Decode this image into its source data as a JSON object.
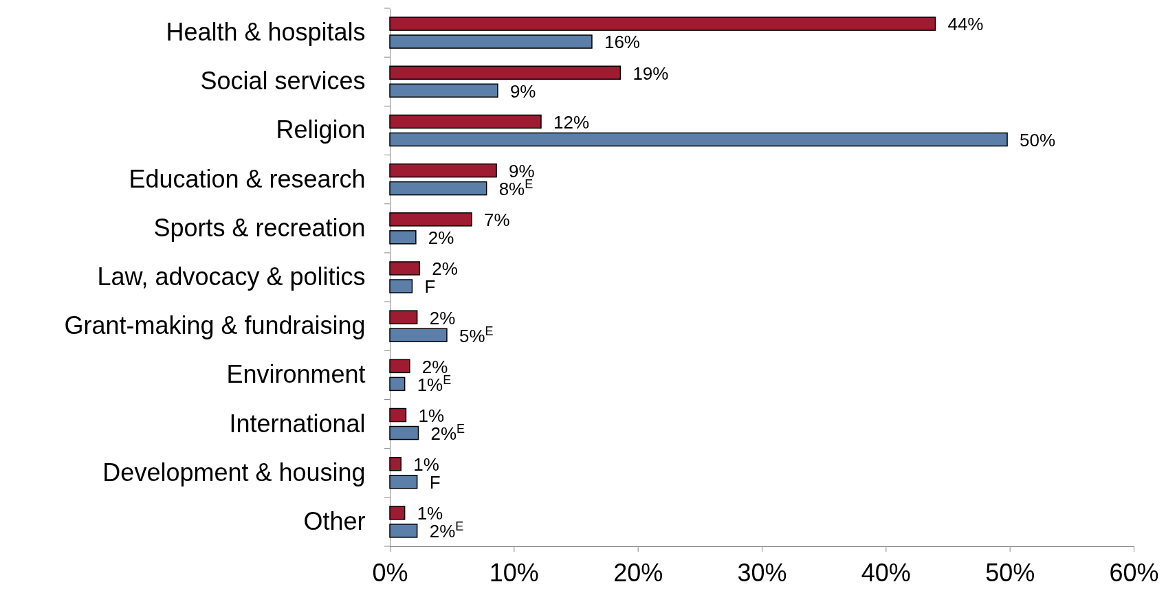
{
  "chart_data": {
    "type": "bar",
    "orientation": "horizontal",
    "categories": [
      "Health & hospitals",
      "Social services",
      "Religion",
      "Education & research",
      "Sports & recreation",
      "Law, advocacy & politics",
      "Grant-making & fundraising",
      "Environment",
      "International",
      "Development & housing",
      "Other"
    ],
    "series": [
      {
        "color": "#9e1b32",
        "values": [
          44,
          18.6,
          12.2,
          8.6,
          6.6,
          2.4,
          2.2,
          1.6,
          1.3,
          0.9,
          1.2
        ],
        "value_labels": [
          "44%",
          "19%",
          "12%",
          "9%",
          "7%",
          "2%",
          "2%",
          "2%",
          "1%",
          "1%",
          "1%"
        ]
      },
      {
        "color": "#5b7fa8",
        "values": [
          16.3,
          8.7,
          49.8,
          7.8,
          2.1,
          1.8,
          4.6,
          1.2,
          2.3,
          2.2,
          2.2
        ],
        "value_labels": [
          "16%",
          "9%",
          "50%",
          "8%$^{E}$",
          "2%",
          "F",
          "5%$^{E}$",
          "1%$^{E}$",
          "2%$^{E}$",
          "F",
          "2%$^{E}$"
        ]
      }
    ],
    "xlim": [
      0,
      60
    ],
    "xticks": [
      {
        "value": 0,
        "label": "0%"
      },
      {
        "value": 10,
        "label": "10%"
      },
      {
        "value": 20,
        "label": "20%"
      },
      {
        "value": 30,
        "label": "30%"
      },
      {
        "value": 40,
        "label": "40%"
      },
      {
        "value": 50,
        "label": "50%"
      },
      {
        "value": 60,
        "label": "60%"
      }
    ],
    "grid": false
  }
}
